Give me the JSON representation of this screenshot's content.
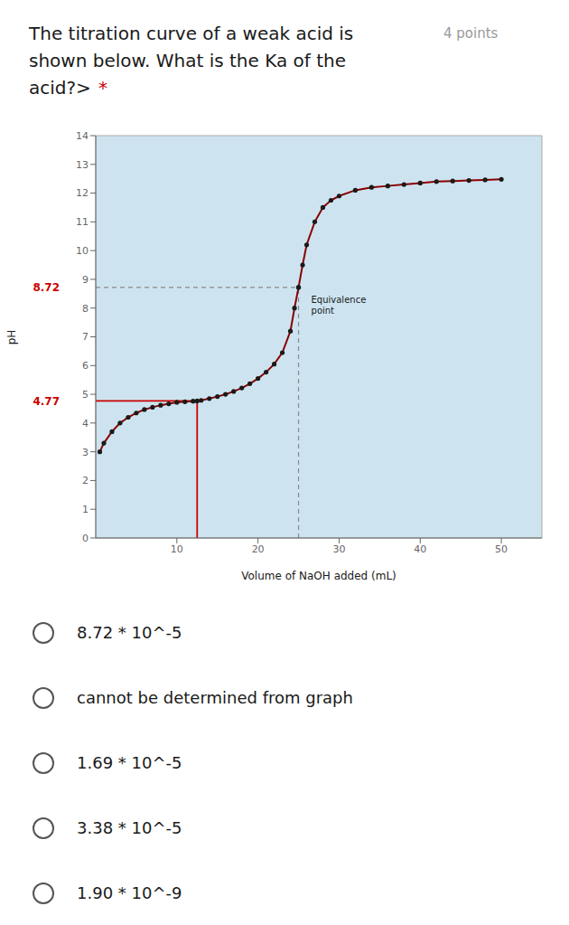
{
  "chart_data": {
    "type": "line",
    "title": "The titration curve of a weak acid is\nshown below. What is the Ka of the\nacid?>",
    "subtitle": "4 points",
    "title_marker": {
      "text": "*",
      "color": "#cc0000"
    },
    "xlabel": "Volume of NaOH added (mL)",
    "ylabel": "pH",
    "x": [
      0.5,
      1,
      2,
      3,
      4,
      5,
      6,
      7,
      8,
      9,
      10,
      11,
      12,
      12.5,
      13,
      14,
      15,
      16,
      17,
      18,
      19,
      20,
      21,
      22,
      23,
      24,
      24.5,
      25,
      25.5,
      26,
      27,
      28,
      29,
      30,
      32,
      34,
      36,
      38,
      40,
      42,
      44,
      46,
      48,
      50
    ],
    "series": [
      {
        "values": [
          3.0,
          3.3,
          3.7,
          4.0,
          4.2,
          4.35,
          4.47,
          4.55,
          4.62,
          4.67,
          4.72,
          4.74,
          4.76,
          4.77,
          4.79,
          4.85,
          4.92,
          5.0,
          5.1,
          5.22,
          5.37,
          5.55,
          5.77,
          6.05,
          6.45,
          7.2,
          8.0,
          8.72,
          9.5,
          10.2,
          11.0,
          11.5,
          11.75,
          11.9,
          12.1,
          12.2,
          12.25,
          12.3,
          12.35,
          12.4,
          12.42,
          12.44,
          12.46,
          12.48
        ],
        "color": "#8b0000",
        "marker": "circle",
        "marker_color": "#1a1a1a"
      }
    ],
    "xlim": [
      0,
      55
    ],
    "ylim": [
      0,
      14
    ],
    "xticks": [
      10,
      20,
      30,
      40,
      50
    ],
    "yticks": [
      0,
      1,
      2,
      3,
      4,
      5,
      6,
      7,
      8,
      9,
      10,
      11,
      12,
      13,
      14
    ],
    "background": "#cde4f0",
    "grid": false,
    "reference_lines": [
      {
        "x": 25,
        "y": 8.72,
        "color": "#888888",
        "line_style": "dashed",
        "label_color": "#cc0000",
        "annotation": "Equivalence\npoint"
      },
      {
        "x": 12.5,
        "y": 4.77,
        "color": "#cc0000",
        "line_style": "solid",
        "label_color": "#cc0000"
      }
    ],
    "options": [
      "8.72 * 10^-5",
      "cannot be determined from graph",
      "1.69 * 10^-5",
      "3.38 * 10^-5",
      "1.90 * 10^-9"
    ]
  }
}
